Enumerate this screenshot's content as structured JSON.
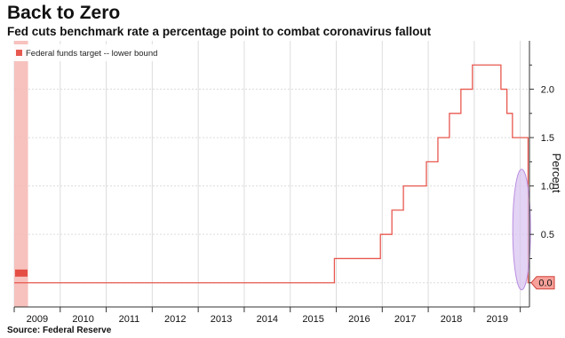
{
  "title": "Back to Zero",
  "subtitle": "Fed cuts benchmark rate a percentage point to combat coronavirus fallout",
  "source": "Source: Federal Reserve",
  "colors": {
    "line": "#e8584f",
    "band": "#f6b7b3",
    "grid": "#dcdcdc",
    "ellipse_fill": "#d9c4f0",
    "ellipse_stroke": "#b98fe0",
    "tag_fill": "#f7a19a",
    "tag_stroke": "#d0423a"
  },
  "chart_data": {
    "type": "line",
    "title": "Back to Zero",
    "xlabel": "",
    "ylabel": "Percent",
    "ylim": [
      -0.25,
      2.5
    ],
    "yticks": [
      0.0,
      0.5,
      1.0,
      1.5,
      2.0
    ],
    "ytick_labels": [
      "0.0",
      "0.5",
      "1.0",
      "1.5",
      "2.0"
    ],
    "xlim": [
      2009.0,
      2020.2
    ],
    "xtick_labels": [
      "2009",
      "2010",
      "2011",
      "2012",
      "2013",
      "2014",
      "2015",
      "2016",
      "2017",
      "2018",
      "2019"
    ],
    "grid": true,
    "legend_position": "top-left",
    "last_value_label": "0.0",
    "series": [
      {
        "name": "Federal funds target -- lower bound",
        "step": true,
        "x": [
          2009.0,
          2015.96,
          2016.96,
          2017.21,
          2017.46,
          2017.96,
          2018.21,
          2018.46,
          2018.71,
          2018.96,
          2019.58,
          2019.71,
          2019.83,
          2020.17,
          2020.2
        ],
        "values": [
          0.0,
          0.25,
          0.5,
          0.75,
          1.0,
          1.25,
          1.5,
          1.75,
          2.0,
          2.25,
          2.0,
          1.75,
          1.5,
          0.0,
          0.0
        ]
      }
    ]
  }
}
